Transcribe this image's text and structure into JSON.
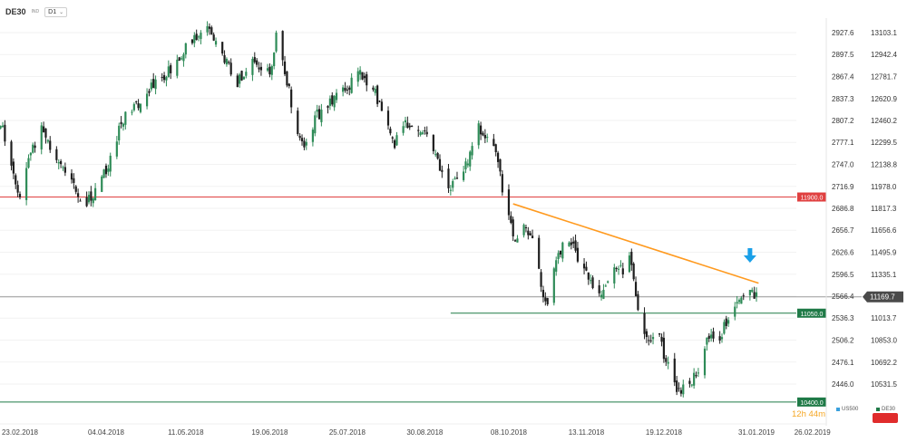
{
  "toolbar": {
    "symbol": "DE30",
    "tag": "IND",
    "timeframe": "D1",
    "chevron_icon": "chevron-down-icon"
  },
  "countdown": {
    "hours": "12h",
    "minutes": "44m"
  },
  "compare_legend": [
    {
      "label": "US500",
      "color": "#3aa0dd"
    },
    {
      "label": "DE30",
      "color": "#1f7a47"
    }
  ],
  "colors": {
    "bull": "#2e8b57",
    "bear": "#1e1e1e",
    "resistance": "#e04040",
    "support": "#1f7a47",
    "trendline": "#ff9a1f",
    "arrow": "#1aa0e8",
    "price_line": "#9a9a9a",
    "price_badge": "#4a4a4a",
    "countdown": "#f5a623"
  },
  "chart_data": {
    "type": "candlestick",
    "symbol": "DE30",
    "timeframe": "D1",
    "ylim": [
      10365,
      13175
    ],
    "secondary_axis_label_for": "US500",
    "right_axis_ticks": [
      "13103.1",
      "12942.4",
      "12781.7",
      "12620.9",
      "12460.2",
      "12299.5",
      "12138.8",
      "11978.0",
      "11817.3",
      "11656.6",
      "11495.9",
      "11335.1",
      "11174.4",
      "11013.7",
      "10853.0",
      "10692.2",
      "10531.5"
    ],
    "left_axis_ticks": [
      "2927.6",
      "2897.5",
      "2867.4",
      "2837.3",
      "2807.2",
      "2777.1",
      "2747.0",
      "2716.9",
      "2686.8",
      "2656.7",
      "2626.6",
      "2596.5",
      "2566.4",
      "2536.3",
      "2506.2",
      "2476.1",
      "2446.0"
    ],
    "x_labels": [
      "23.02.2018",
      "04.04.2018",
      "11.05.2018",
      "19.06.2018",
      "25.07.2018",
      "30.08.2018",
      "08.10.2018",
      "13.11.2018",
      "19.12.2018",
      "31.01.2019",
      "26.02.2019"
    ],
    "current_price": "11169.7",
    "horizontal_levels": [
      {
        "value": 11900.0,
        "label": "11900.0",
        "color": "#e04040"
      },
      {
        "value": 11050.0,
        "label": "11050.0",
        "color": "#1f7a47",
        "start": "11.09.2018"
      },
      {
        "value": 10400.0,
        "label": "10400.0",
        "color": "#1f7a47"
      }
    ],
    "trendline": {
      "color": "#ff9a1f",
      "from": {
        "date": "10.10.2018",
        "value": 11850
      },
      "to": {
        "date": "01.02.2019",
        "value": 11270
      }
    },
    "annotation": {
      "type": "down-arrow",
      "date": "28.01.2019",
      "value": 11420,
      "color": "#1aa0e8"
    },
    "path_anchors": [
      {
        "date": "12.02.2018",
        "close": 12450
      },
      {
        "date": "15.02.2018",
        "close": 12380
      },
      {
        "date": "19.02.2018",
        "close": 12150
      },
      {
        "date": "23.02.2018",
        "close": 11880
      },
      {
        "date": "27.02.2018",
        "close": 12200
      },
      {
        "date": "05.03.2018",
        "close": 12400
      },
      {
        "date": "12.03.2018",
        "close": 12150
      },
      {
        "date": "16.03.2018",
        "close": 12050
      },
      {
        "date": "26.03.2018",
        "close": 11850
      },
      {
        "date": "04.04.2018",
        "close": 12100
      },
      {
        "date": "11.04.2018",
        "close": 12450
      },
      {
        "date": "25.04.2018",
        "close": 12700
      },
      {
        "date": "04.05.2018",
        "close": 12850
      },
      {
        "date": "11.05.2018",
        "close": 12980
      },
      {
        "date": "22.05.2018",
        "close": 13150
      },
      {
        "date": "28.05.2018",
        "close": 12950
      },
      {
        "date": "04.06.2018",
        "close": 12750
      },
      {
        "date": "12.06.2018",
        "close": 12900
      },
      {
        "date": "19.06.2018",
        "close": 12800
      },
      {
        "date": "22.06.2018",
        "close": 13100
      },
      {
        "date": "27.06.2018",
        "close": 12750
      },
      {
        "date": "02.07.2018",
        "close": 12350
      },
      {
        "date": "05.07.2018",
        "close": 12250
      },
      {
        "date": "10.07.2018",
        "close": 12480
      },
      {
        "date": "18.07.2018",
        "close": 12600
      },
      {
        "date": "25.07.2018",
        "close": 12700
      },
      {
        "date": "31.07.2018",
        "close": 12820
      },
      {
        "date": "06.08.2018",
        "close": 12700
      },
      {
        "date": "10.08.2018",
        "close": 12550
      },
      {
        "date": "16.08.2018",
        "close": 12300
      },
      {
        "date": "22.08.2018",
        "close": 12450
      },
      {
        "date": "30.08.2018",
        "close": 12400
      },
      {
        "date": "04.09.2018",
        "close": 12200
      },
      {
        "date": "10.09.2018",
        "close": 11960
      },
      {
        "date": "17.09.2018",
        "close": 12100
      },
      {
        "date": "24.09.2018",
        "close": 12400
      },
      {
        "date": "28.09.2018",
        "close": 12300
      },
      {
        "date": "02.10.2018",
        "close": 12250
      },
      {
        "date": "05.10.2018",
        "close": 11950
      },
      {
        "date": "08.10.2018",
        "close": 11750
      },
      {
        "date": "11.10.2018",
        "close": 11550
      },
      {
        "date": "15.10.2018",
        "close": 11700
      },
      {
        "date": "19.10.2018",
        "close": 11600
      },
      {
        "date": "23.10.2018",
        "close": 11250
      },
      {
        "date": "26.10.2018",
        "close": 11100
      },
      {
        "date": "29.10.2018",
        "close": 11350
      },
      {
        "date": "01.11.2018",
        "close": 11500
      },
      {
        "date": "05.11.2018",
        "close": 11600
      },
      {
        "date": "08.11.2018",
        "close": 11500
      },
      {
        "date": "13.11.2018",
        "close": 11350
      },
      {
        "date": "16.11.2018",
        "close": 11250
      },
      {
        "date": "20.11.2018",
        "close": 11200
      },
      {
        "date": "23.11.2018",
        "close": 11300
      },
      {
        "date": "27.11.2018",
        "close": 11400
      },
      {
        "date": "30.11.2018",
        "close": 11350
      },
      {
        "date": "03.12.2018",
        "close": 11500
      },
      {
        "date": "06.12.2018",
        "close": 11150
      },
      {
        "date": "10.12.2018",
        "close": 10900
      },
      {
        "date": "13.12.2018",
        "close": 10850
      },
      {
        "date": "17.12.2018",
        "close": 10850
      },
      {
        "date": "19.12.2018",
        "close": 10750
      },
      {
        "date": "21.12.2018",
        "close": 10650
      },
      {
        "date": "27.12.2018",
        "close": 10450
      },
      {
        "date": "28.12.2018",
        "close": 10500
      },
      {
        "date": "03.01.2019",
        "close": 10600
      },
      {
        "date": "07.01.2019",
        "close": 10800
      },
      {
        "date": "10.01.2019",
        "close": 10900
      },
      {
        "date": "14.01.2019",
        "close": 10850
      },
      {
        "date": "17.01.2019",
        "close": 11000
      },
      {
        "date": "21.01.2019",
        "close": 11100
      },
      {
        "date": "24.01.2019",
        "close": 11150
      },
      {
        "date": "28.01.2019",
        "close": 11250
      },
      {
        "date": "31.01.2019",
        "close": 11169.7
      }
    ]
  }
}
